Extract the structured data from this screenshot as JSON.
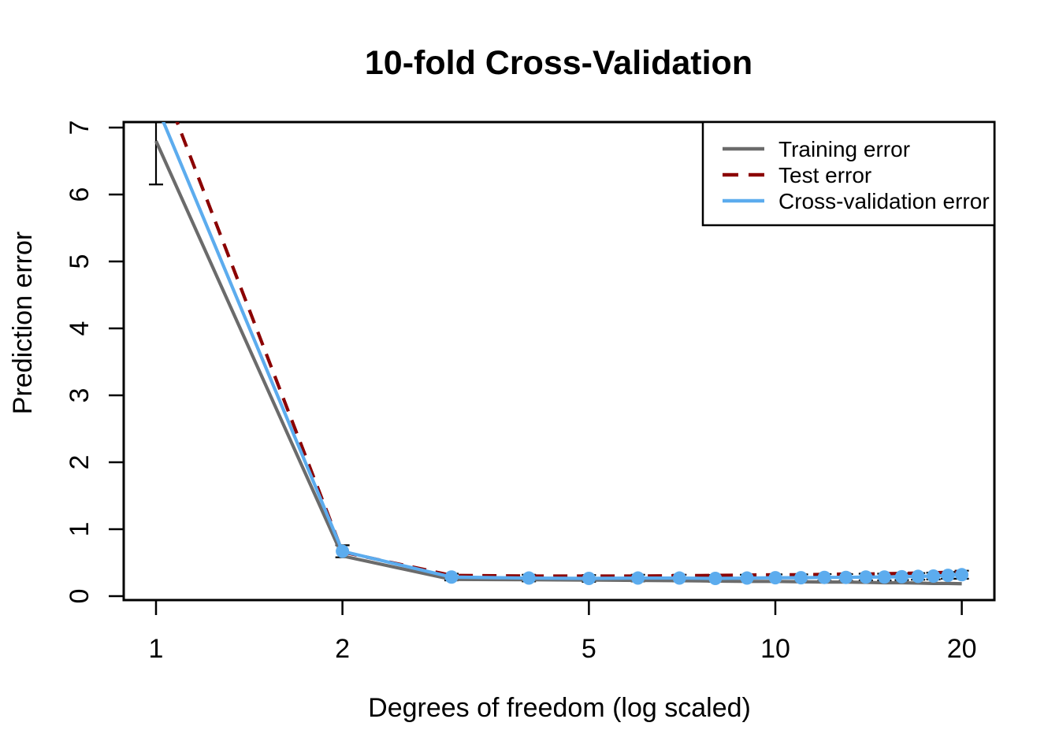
{
  "figure": {
    "title": "10-fold Cross-Validation"
  },
  "chart_data": {
    "type": "line",
    "title": "10-fold Cross-Validation",
    "xlabel": "Degrees of freedom (log scaled)",
    "ylabel": "Prediction error",
    "x_scale": "log10",
    "grid": false,
    "xlim": [
      1,
      20
    ],
    "ylim": [
      0,
      7.1
    ],
    "x_ticks": [
      1,
      2,
      5,
      10,
      20
    ],
    "y_ticks": [
      0,
      1,
      2,
      3,
      4,
      5,
      6,
      7
    ],
    "x": [
      1,
      2,
      3,
      4,
      5,
      6,
      7,
      8,
      9,
      10,
      11,
      12,
      13,
      14,
      15,
      16,
      17,
      18,
      19,
      20
    ],
    "series": [
      {
        "name": "Training error",
        "color": "#6B6B6B",
        "style": "solid",
        "marker": "none",
        "values": [
          6.8,
          0.6,
          0.25,
          0.245,
          0.24,
          0.235,
          0.23,
          0.225,
          0.22,
          0.22,
          0.215,
          0.21,
          0.21,
          0.205,
          0.2,
          0.2,
          0.195,
          0.19,
          0.19,
          0.185
        ]
      },
      {
        "name": "Test error",
        "color": "#8B0000",
        "style": "dashed",
        "marker": "none",
        "values": [
          7.9,
          0.66,
          0.31,
          0.3,
          0.3,
          0.3,
          0.305,
          0.31,
          0.315,
          0.32,
          0.32,
          0.325,
          0.33,
          0.33,
          0.335,
          0.34,
          0.345,
          0.35,
          0.355,
          0.36
        ]
      },
      {
        "name": "Cross-validation error",
        "color": "#5CACEE",
        "style": "solid",
        "marker": "circle",
        "values": [
          7.35,
          0.67,
          0.285,
          0.27,
          0.265,
          0.27,
          0.27,
          0.265,
          0.27,
          0.275,
          0.275,
          0.28,
          0.28,
          0.285,
          0.285,
          0.29,
          0.295,
          0.3,
          0.31,
          0.32
        ],
        "error_bars": [
          1.2,
          0.09,
          0.05,
          0.05,
          0.05,
          0.05,
          0.05,
          0.05,
          0.05,
          0.05,
          0.05,
          0.05,
          0.05,
          0.05,
          0.05,
          0.05,
          0.05,
          0.05,
          0.05,
          0.06
        ]
      }
    ],
    "legend": {
      "position": "topright",
      "entries": [
        "Training error",
        "Test error",
        "Cross-validation error"
      ]
    },
    "annotations": {
      "clipping_note": "Curves at df=1 rise above the top of the y axis and are clipped; the CV error bar lower cap at df=1 is visible at about 6.15."
    }
  }
}
